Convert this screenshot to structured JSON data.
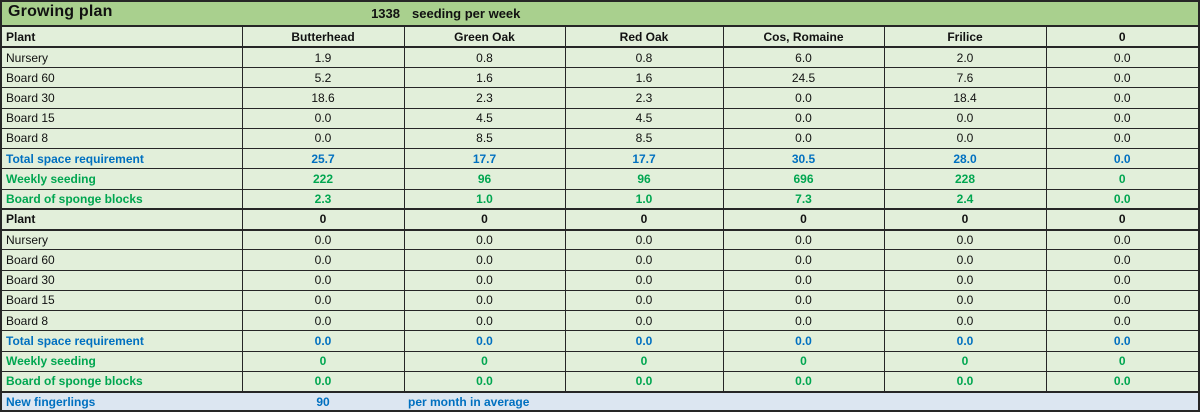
{
  "title_bar": {
    "title": "Growing plan",
    "seeding_count": "1338",
    "seeding_unit": "seeding per week"
  },
  "table": {
    "columns": [
      "Plant",
      "Butterhead",
      "Green Oak",
      "Red Oak",
      "Cos, Romaine",
      "Frilice",
      "0"
    ],
    "rows": [
      {
        "style": "header",
        "label": "Plant",
        "values": [
          "Butterhead",
          "Green Oak",
          "Red Oak",
          "Cos, Romaine",
          "Frilice",
          "0"
        ]
      },
      {
        "style": "plain",
        "label": "Nursery",
        "values": [
          "1.9",
          "0.8",
          "0.8",
          "6.0",
          "2.0",
          "0.0"
        ]
      },
      {
        "style": "plain",
        "label": "Board 60",
        "values": [
          "5.2",
          "1.6",
          "1.6",
          "24.5",
          "7.6",
          "0.0"
        ]
      },
      {
        "style": "plain",
        "label": "Board 30",
        "values": [
          "18.6",
          "2.3",
          "2.3",
          "0.0",
          "18.4",
          "0.0"
        ]
      },
      {
        "style": "plain",
        "label": "Board 15",
        "values": [
          "0.0",
          "4.5",
          "4.5",
          "0.0",
          "0.0",
          "0.0"
        ]
      },
      {
        "style": "plain",
        "label": "Board 8",
        "values": [
          "0.0",
          "8.5",
          "8.5",
          "0.0",
          "0.0",
          "0.0"
        ]
      },
      {
        "style": "blue",
        "label": "Total space requirement",
        "values": [
          "25.7",
          "17.7",
          "17.7",
          "30.5",
          "28.0",
          "0.0"
        ]
      },
      {
        "style": "green",
        "label": "Weekly seeding",
        "values": [
          "222",
          "96",
          "96",
          "696",
          "228",
          "0"
        ]
      },
      {
        "style": "green",
        "label": "Board of sponge blocks",
        "values": [
          "2.3",
          "1.0",
          "1.0",
          "7.3",
          "2.4",
          "0.0"
        ]
      },
      {
        "style": "header",
        "label": "Plant",
        "values": [
          "0",
          "0",
          "0",
          "0",
          "0",
          "0"
        ]
      },
      {
        "style": "plain",
        "label": "Nursery",
        "values": [
          "0.0",
          "0.0",
          "0.0",
          "0.0",
          "0.0",
          "0.0"
        ]
      },
      {
        "style": "plain",
        "label": "Board 60",
        "values": [
          "0.0",
          "0.0",
          "0.0",
          "0.0",
          "0.0",
          "0.0"
        ]
      },
      {
        "style": "plain",
        "label": "Board 30",
        "values": [
          "0.0",
          "0.0",
          "0.0",
          "0.0",
          "0.0",
          "0.0"
        ]
      },
      {
        "style": "plain",
        "label": "Board 15",
        "values": [
          "0.0",
          "0.0",
          "0.0",
          "0.0",
          "0.0",
          "0.0"
        ]
      },
      {
        "style": "plain",
        "label": "Board 8",
        "values": [
          "0.0",
          "0.0",
          "0.0",
          "0.0",
          "0.0",
          "0.0"
        ]
      },
      {
        "style": "blue",
        "label": "Total space requirement",
        "values": [
          "0.0",
          "0.0",
          "0.0",
          "0.0",
          "0.0",
          "0.0"
        ]
      },
      {
        "style": "green",
        "label": "Weekly seeding",
        "values": [
          "0",
          "0",
          "0",
          "0",
          "0",
          "0"
        ]
      },
      {
        "style": "green",
        "label": "Board of sponge blocks",
        "values": [
          "0.0",
          "0.0",
          "0.0",
          "0.0",
          "0.0",
          "0.0"
        ]
      }
    ]
  },
  "footer": {
    "label": "New fingerlings",
    "value": "90",
    "note": "per month in average"
  },
  "colors": {
    "title_bg": "#a9d08e",
    "row_bg": "#e2efda",
    "footer_bg": "#dce6f1",
    "blue_text": "#0070c0",
    "green_text": "#00a650",
    "border": "#262626"
  }
}
